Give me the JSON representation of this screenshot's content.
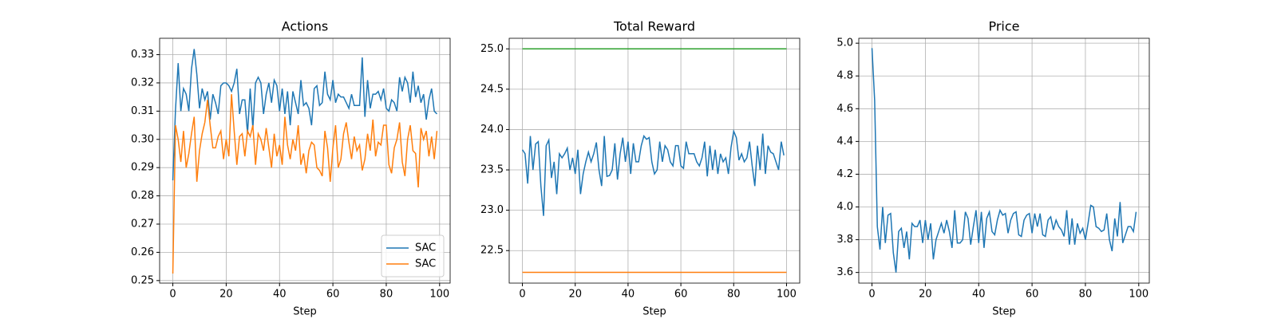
{
  "chart_data": [
    {
      "type": "line",
      "title": "Actions",
      "xlabel": "Step",
      "x": [
        0,
        1,
        2,
        3,
        4,
        5,
        6,
        7,
        8,
        9,
        10,
        11,
        12,
        13,
        14,
        15,
        16,
        17,
        18,
        19,
        20,
        21,
        22,
        23,
        24,
        25,
        26,
        27,
        28,
        29,
        30,
        31,
        32,
        33,
        34,
        35,
        36,
        37,
        38,
        39,
        40,
        41,
        42,
        43,
        44,
        45,
        46,
        47,
        48,
        49,
        50,
        51,
        52,
        53,
        54,
        55,
        56,
        57,
        58,
        59,
        60,
        61,
        62,
        63,
        64,
        65,
        66,
        67,
        68,
        69,
        70,
        71,
        72,
        73,
        74,
        75,
        76,
        77,
        78,
        79,
        80,
        81,
        82,
        83,
        84,
        85,
        86,
        87,
        88,
        89,
        90,
        91,
        92,
        93,
        94,
        95,
        96,
        97,
        98,
        99
      ],
      "series": [
        {
          "name": "SAC",
          "color": "#1f77b4",
          "values": [
            0.2855,
            0.3105,
            0.327,
            0.31,
            0.318,
            0.316,
            0.31,
            0.325,
            0.332,
            0.323,
            0.311,
            0.318,
            0.314,
            0.317,
            0.307,
            0.316,
            0.313,
            0.309,
            0.319,
            0.32,
            0.32,
            0.319,
            0.317,
            0.32,
            0.325,
            0.309,
            0.314,
            0.314,
            0.302,
            0.318,
            0.304,
            0.32,
            0.322,
            0.32,
            0.309,
            0.316,
            0.32,
            0.313,
            0.321,
            0.319,
            0.31,
            0.318,
            0.309,
            0.317,
            0.305,
            0.317,
            0.313,
            0.309,
            0.321,
            0.312,
            0.313,
            0.311,
            0.305,
            0.318,
            0.319,
            0.312,
            0.313,
            0.324,
            0.316,
            0.314,
            0.321,
            0.313,
            0.316,
            0.315,
            0.315,
            0.313,
            0.311,
            0.316,
            0.312,
            0.312,
            0.312,
            0.329,
            0.308,
            0.321,
            0.311,
            0.316,
            0.316,
            0.317,
            0.314,
            0.318,
            0.311,
            0.31,
            0.314,
            0.313,
            0.31,
            0.322,
            0.317,
            0.322,
            0.32,
            0.313,
            0.324,
            0.315,
            0.319,
            0.313,
            0.316,
            0.307,
            0.314,
            0.318,
            0.31,
            0.309
          ]
        },
        {
          "name": "SAC",
          "color": "#ff7f0e",
          "values": [
            0.2525,
            0.305,
            0.3,
            0.292,
            0.303,
            0.29,
            0.295,
            0.302,
            0.308,
            0.285,
            0.296,
            0.302,
            0.306,
            0.314,
            0.305,
            0.297,
            0.297,
            0.301,
            0.303,
            0.293,
            0.3,
            0.294,
            0.316,
            0.303,
            0.291,
            0.301,
            0.302,
            0.294,
            0.303,
            0.301,
            0.305,
            0.291,
            0.302,
            0.3,
            0.296,
            0.304,
            0.297,
            0.29,
            0.302,
            0.294,
            0.298,
            0.291,
            0.308,
            0.298,
            0.293,
            0.3,
            0.296,
            0.305,
            0.291,
            0.295,
            0.288,
            0.296,
            0.299,
            0.298,
            0.29,
            0.289,
            0.287,
            0.303,
            0.297,
            0.285,
            0.297,
            0.305,
            0.29,
            0.293,
            0.302,
            0.306,
            0.299,
            0.293,
            0.301,
            0.296,
            0.298,
            0.289,
            0.293,
            0.302,
            0.296,
            0.307,
            0.294,
            0.299,
            0.298,
            0.305,
            0.305,
            0.291,
            0.288,
            0.297,
            0.3,
            0.306,
            0.292,
            0.287,
            0.3,
            0.305,
            0.296,
            0.295,
            0.283,
            0.304,
            0.3,
            0.303,
            0.294,
            0.301,
            0.293,
            0.303
          ]
        }
      ],
      "xlim": [
        -4.95,
        103.95
      ],
      "ylim": [
        0.2491,
        0.3358
      ],
      "xticks": [
        0,
        20,
        40,
        60,
        80,
        100
      ],
      "yticks": [
        0.25,
        0.26,
        0.27,
        0.28,
        0.29,
        {
          "value": 0.3,
          "label": "0.30"
        },
        0.31,
        0.32,
        0.33
      ],
      "grid": true,
      "legend": "lower right"
    },
    {
      "type": "line",
      "title": "Total Reward",
      "xlabel": "Step",
      "x": [
        0,
        1,
        2,
        3,
        4,
        5,
        6,
        7,
        8,
        9,
        10,
        11,
        12,
        13,
        14,
        15,
        16,
        17,
        18,
        19,
        20,
        21,
        22,
        23,
        24,
        25,
        26,
        27,
        28,
        29,
        30,
        31,
        32,
        33,
        34,
        35,
        36,
        37,
        38,
        39,
        40,
        41,
        42,
        43,
        44,
        45,
        46,
        47,
        48,
        49,
        50,
        51,
        52,
        53,
        54,
        55,
        56,
        57,
        58,
        59,
        60,
        61,
        62,
        63,
        64,
        65,
        66,
        67,
        68,
        69,
        70,
        71,
        72,
        73,
        74,
        75,
        76,
        77,
        78,
        79,
        80,
        81,
        82,
        83,
        84,
        85,
        86,
        87,
        88,
        89,
        90,
        91,
        92,
        93,
        94,
        95,
        96,
        97,
        98,
        99
      ],
      "series": [
        {
          "color": "#1f77b4",
          "values": [
            23.75,
            23.7,
            23.33,
            23.92,
            23.5,
            23.82,
            23.85,
            23.3,
            22.93,
            23.8,
            23.87,
            23.4,
            23.6,
            23.2,
            23.7,
            23.65,
            23.7,
            23.77,
            23.5,
            23.65,
            23.45,
            23.75,
            23.2,
            23.45,
            23.6,
            23.72,
            23.6,
            23.7,
            23.84,
            23.5,
            23.3,
            23.92,
            23.42,
            23.43,
            23.5,
            23.83,
            23.38,
            23.7,
            23.9,
            23.6,
            23.85,
            23.45,
            23.83,
            23.6,
            23.6,
            23.8,
            23.92,
            23.88,
            23.9,
            23.6,
            23.45,
            23.5,
            23.85,
            23.6,
            23.8,
            23.75,
            23.6,
            23.55,
            23.8,
            23.8,
            23.55,
            23.52,
            23.85,
            23.7,
            23.7,
            23.7,
            23.6,
            23.55,
            23.65,
            23.85,
            23.42,
            23.8,
            23.5,
            23.75,
            23.45,
            23.7,
            23.6,
            23.65,
            23.45,
            23.78,
            23.98,
            23.9,
            23.62,
            23.7,
            23.6,
            23.65,
            23.85,
            23.55,
            23.3,
            23.8,
            23.5,
            23.95,
            23.45,
            23.8,
            23.72,
            23.7,
            23.6,
            23.5,
            23.85,
            23.68
          ]
        },
        {
          "color": "#2ca02c",
          "x": [
            0,
            100
          ],
          "values": [
            25.0,
            25.0
          ]
        },
        {
          "color": "#ff7f0e",
          "x": [
            0,
            100
          ],
          "values": [
            22.23,
            22.23
          ]
        }
      ],
      "xlim": [
        -5,
        105
      ],
      "ylim": [
        22.097,
        25.131
      ],
      "xticks": [
        0,
        20,
        40,
        60,
        80,
        100
      ],
      "yticks": [
        22.5,
        {
          "value": 23,
          "label": "23.0"
        },
        23.5,
        {
          "value": 24,
          "label": "24.0"
        },
        24.5,
        {
          "value": 25,
          "label": "25.0"
        }
      ],
      "grid": true
    },
    {
      "type": "line",
      "title": "Price",
      "xlabel": "Step",
      "x": [
        0,
        1,
        2,
        3,
        4,
        5,
        6,
        7,
        8,
        9,
        10,
        11,
        12,
        13,
        14,
        15,
        16,
        17,
        18,
        19,
        20,
        21,
        22,
        23,
        24,
        25,
        26,
        27,
        28,
        29,
        30,
        31,
        32,
        33,
        34,
        35,
        36,
        37,
        38,
        39,
        40,
        41,
        42,
        43,
        44,
        45,
        46,
        47,
        48,
        49,
        50,
        51,
        52,
        53,
        54,
        55,
        56,
        57,
        58,
        59,
        60,
        61,
        62,
        63,
        64,
        65,
        66,
        67,
        68,
        69,
        70,
        71,
        72,
        73,
        74,
        75,
        76,
        77,
        78,
        79,
        80,
        81,
        82,
        83,
        84,
        85,
        86,
        87,
        88,
        89,
        90,
        91,
        92,
        93,
        94,
        95,
        96,
        97,
        98,
        99
      ],
      "series": [
        {
          "color": "#1f77b4",
          "values": [
            4.97,
            4.65,
            3.88,
            3.74,
            4.0,
            3.78,
            3.95,
            3.96,
            3.72,
            3.6,
            3.85,
            3.87,
            3.75,
            3.85,
            3.68,
            3.9,
            3.88,
            3.88,
            3.92,
            3.78,
            3.92,
            3.8,
            3.9,
            3.68,
            3.8,
            3.85,
            3.9,
            3.84,
            3.92,
            3.85,
            3.75,
            3.98,
            3.78,
            3.78,
            3.8,
            3.97,
            3.93,
            3.77,
            3.88,
            3.98,
            3.78,
            3.97,
            3.75,
            3.93,
            3.97,
            3.85,
            3.83,
            3.92,
            3.98,
            3.95,
            3.96,
            3.84,
            3.92,
            3.96,
            3.97,
            3.83,
            3.82,
            3.92,
            3.95,
            3.96,
            3.84,
            3.96,
            3.88,
            3.96,
            3.83,
            3.82,
            3.92,
            3.94,
            3.86,
            3.92,
            3.88,
            3.86,
            3.82,
            3.98,
            3.77,
            3.93,
            3.77,
            3.9,
            3.84,
            3.87,
            3.8,
            3.9,
            4.01,
            4.0,
            3.88,
            3.87,
            3.85,
            3.86,
            3.96,
            3.8,
            3.73,
            3.93,
            3.82,
            4.03,
            3.78,
            3.83,
            3.88,
            3.88,
            3.85,
            3.97
          ]
        }
      ],
      "xlim": [
        -4.95,
        103.95
      ],
      "ylim": [
        3.535,
        5.03
      ],
      "xticks": [
        0,
        20,
        40,
        60,
        80,
        100
      ],
      "yticks": [
        3.6,
        3.8,
        {
          "value": 4,
          "label": "4.0"
        },
        4.2,
        4.4,
        4.6,
        4.8,
        {
          "value": 5,
          "label": "5.0"
        }
      ],
      "grid": true
    }
  ]
}
